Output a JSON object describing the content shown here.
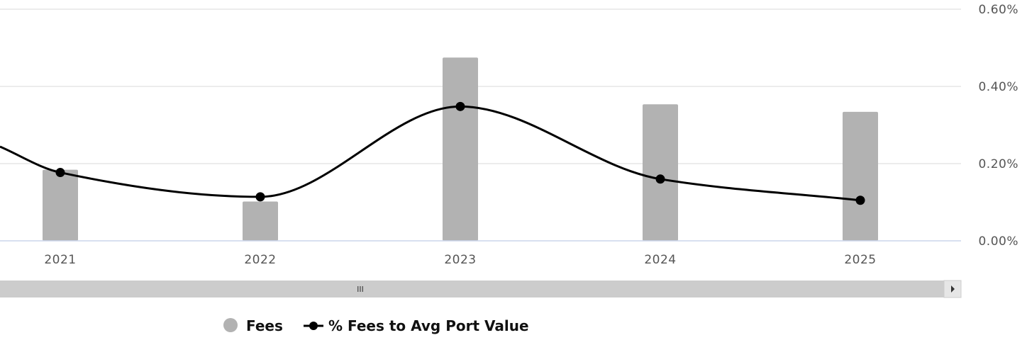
{
  "chart_data": {
    "type": "bar",
    "categories": [
      "2021",
      "2022",
      "2023",
      "2024",
      "2025"
    ],
    "series": [
      {
        "name": "Fees",
        "kind": "bar",
        "color": "#b2b2b2",
        "values": [
          null,
          null,
          null,
          null,
          null
        ]
      },
      {
        "name": "% Fees to Avg Port Value",
        "kind": "line",
        "color": "#000000",
        "axis": "right",
        "values": [
          0.177,
          0.114,
          0.348,
          0.16,
          0.105
        ]
      }
    ],
    "bar_relative_heights": [
      0.38,
      0.21,
      0.98,
      0.73,
      0.69
    ],
    "y_right": {
      "ticks": [
        "0.00%",
        "0.20%",
        "0.40%",
        "0.60%"
      ],
      "tick_values": [
        0,
        0.2,
        0.4,
        0.6
      ],
      "range": [
        0,
        0.6
      ]
    },
    "line_left_edge_value": 0.244,
    "grid": true,
    "legend_position": "bottom-center"
  },
  "scrollbar": {
    "grip_label": "III",
    "arrow_icon": "triangle-right-icon"
  }
}
